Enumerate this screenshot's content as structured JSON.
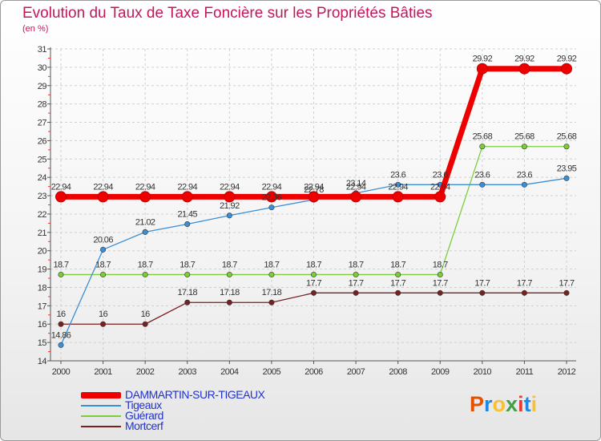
{
  "title": "Evolution du Taux de Taxe Foncière sur les Propriétés Bâties",
  "unit": "(en %)",
  "logo": {
    "letters": [
      "P",
      "r",
      "o",
      "x",
      "i",
      "t",
      "i"
    ],
    "colors": [
      "#e65100",
      "#1e88e5",
      "#fbc02d",
      "#43a047",
      "#e53935",
      "#1e88e5",
      "#fbc02d"
    ]
  },
  "chart_data": {
    "type": "line",
    "title": "Evolution du Taux de Taxe Foncière sur les Propriétés Bâties",
    "ylabel": "(en %)",
    "xlabel": "",
    "ylim": [
      14,
      31
    ],
    "yticks": [
      "14",
      "15",
      "16",
      "17",
      "18",
      "19",
      "20",
      "21",
      "22",
      "23",
      "24",
      "25",
      "26",
      "27",
      "28",
      "29",
      "30",
      "31"
    ],
    "categories": [
      "2000",
      "2001",
      "2002",
      "2003",
      "2004",
      "2005",
      "2006",
      "2007",
      "2008",
      "2009",
      "2010",
      "2011",
      "2012"
    ],
    "series": [
      {
        "name": "DAMMARTIN-SUR-TIGEAUX",
        "color": "#ee0000",
        "values": [
          22.94,
          22.94,
          22.94,
          22.94,
          22.94,
          22.94,
          22.94,
          22.94,
          22.94,
          22.94,
          29.92,
          29.92,
          29.92
        ],
        "labels": [
          "22.94",
          "22.94",
          "22.94",
          "22.94",
          "22.94",
          "22.94",
          "22.94",
          "22.94",
          "22.94",
          "22.94",
          "29.92",
          "29.92",
          "29.92"
        ]
      },
      {
        "name": "Tigeaux",
        "color": "#3b8fd6",
        "values": [
          14.86,
          20.06,
          21.02,
          21.45,
          21.92,
          22.36,
          22.78,
          23.14,
          23.6,
          23.6,
          23.6,
          23.6,
          23.95
        ],
        "labels": [
          "14.86",
          "20.06",
          "21.02",
          "21.45",
          "21.92",
          "22.36",
          "22.78",
          "23.14",
          "23.6",
          "23.6",
          "23.6",
          "23.6",
          "23.95"
        ]
      },
      {
        "name": "Guérard",
        "color": "#7ccd3c",
        "values": [
          18.7,
          18.7,
          18.7,
          18.7,
          18.7,
          18.7,
          18.7,
          18.7,
          18.7,
          18.7,
          25.68,
          25.68,
          25.68
        ],
        "labels": [
          "18.7",
          "18.7",
          "18.7",
          "18.7",
          "18.7",
          "18.7",
          "18.7",
          "18.7",
          "18.7",
          "18.7",
          "25.68",
          "25.68",
          "25.68"
        ]
      },
      {
        "name": "Mortcerf",
        "color": "#7a2020",
        "values": [
          16,
          16,
          16,
          17.18,
          17.18,
          17.18,
          17.7,
          17.7,
          17.7,
          17.7,
          17.7,
          17.7,
          17.7
        ],
        "labels": [
          "16",
          "16",
          "16",
          "17.18",
          "17.18",
          "17.18",
          "17.7",
          "17.7",
          "17.7",
          "17.7",
          "17.7",
          "17.7",
          "17.7"
        ]
      }
    ]
  }
}
